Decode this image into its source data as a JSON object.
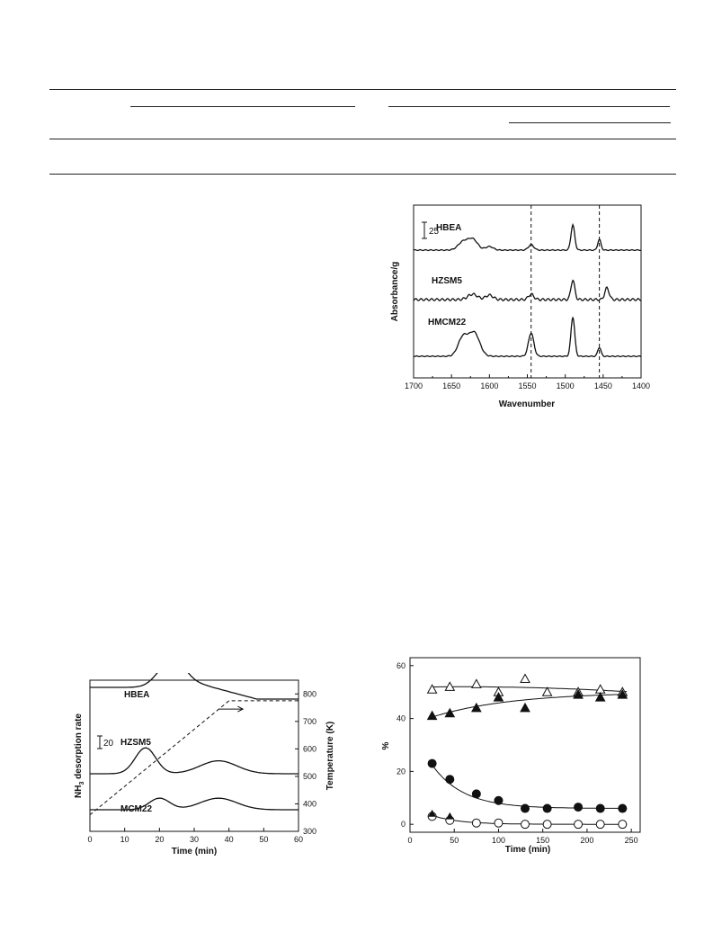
{
  "ir_chart": {
    "type": "line",
    "xlabel": "Wavenumber",
    "ylabel": "Absorbance/g",
    "x_ticks": [
      "1700",
      "1650",
      "1600",
      "1550",
      "1500",
      "1450",
      "1400"
    ],
    "xlim": [
      1700,
      1400
    ],
    "scale_bar_label": "25",
    "dashed_lines_at": [
      1545,
      1455
    ],
    "series": [
      {
        "name": "HBEA",
        "peaks": [
          [
            1635,
            9
          ],
          [
            1622,
            12
          ],
          [
            1600,
            4
          ],
          [
            1545,
            6
          ],
          [
            1490,
            28
          ],
          [
            1455,
            12
          ]
        ]
      },
      {
        "name": "HZSM5",
        "peaks": [
          [
            1622,
            6
          ],
          [
            1600,
            5
          ],
          [
            1545,
            6
          ],
          [
            1490,
            22
          ],
          [
            1445,
            13
          ]
        ]
      },
      {
        "name": "HMCM22",
        "peaks": [
          [
            1635,
            21
          ],
          [
            1620,
            26
          ],
          [
            1545,
            26
          ],
          [
            1490,
            44
          ],
          [
            1455,
            10
          ]
        ]
      }
    ]
  },
  "tpd_chart": {
    "type": "line",
    "xlabel": "Time (min)",
    "ylabel_left": "NH3 desorption rate",
    "ylabel_right": "Temperature (K)",
    "x_ticks": [
      "0",
      "10",
      "20",
      "30",
      "40",
      "50",
      "60"
    ],
    "y_right_ticks": [
      "300",
      "400",
      "500",
      "600",
      "700",
      "800"
    ],
    "xlim": [
      0,
      60
    ],
    "y_right_lim": [
      300,
      850
    ],
    "scale_bar_label": "20",
    "series": [
      {
        "name": "HBEA",
        "peaks": [
          [
            23,
            17
          ]
        ],
        "decay": true
      },
      {
        "name": "HZSM5",
        "peaks": [
          [
            16,
            18
          ],
          [
            37,
            9
          ]
        ]
      },
      {
        "name": "MCM22",
        "peaks": [
          [
            20,
            8
          ],
          [
            37,
            8
          ]
        ]
      }
    ],
    "temperature_ramp": {
      "start": [
        0,
        360
      ],
      "end": [
        40,
        775
      ],
      "hold_until": 60
    }
  },
  "conv_chart": {
    "type": "scatter",
    "xlabel": "Time (min)",
    "ylabel": "%",
    "x_ticks": [
      "0",
      "50",
      "100",
      "150",
      "200",
      "250"
    ],
    "y_ticks": [
      "0",
      "20",
      "40",
      "60"
    ],
    "xlim": [
      0,
      260
    ],
    "ylim": [
      -3,
      63
    ],
    "series": [
      {
        "marker": "open-triangle",
        "x": [
          25,
          45,
          75,
          100,
          130,
          155,
          190,
          215,
          240
        ],
        "y": [
          51,
          52,
          53,
          50,
          55,
          50,
          50,
          51,
          50
        ]
      },
      {
        "marker": "filled-triangle",
        "x": [
          25,
          45,
          75,
          100,
          130,
          190,
          215,
          240
        ],
        "y": [
          41,
          42,
          44,
          48,
          44,
          49,
          48,
          49
        ]
      },
      {
        "marker": "filled-circle",
        "x": [
          25,
          45,
          75,
          100,
          130,
          155,
          190,
          215,
          240
        ],
        "y": [
          23,
          17,
          11.5,
          9,
          6,
          6,
          6.5,
          6,
          6
        ]
      },
      {
        "marker": "open-circle",
        "x": [
          25,
          45,
          75,
          100,
          130,
          155,
          190,
          215,
          240
        ],
        "y": [
          3,
          1.5,
          0.5,
          0.5,
          0,
          0,
          0,
          0,
          0
        ]
      },
      {
        "marker": "filled-triangle-small",
        "x": [
          25,
          45
        ],
        "y": [
          4,
          3
        ]
      }
    ]
  }
}
